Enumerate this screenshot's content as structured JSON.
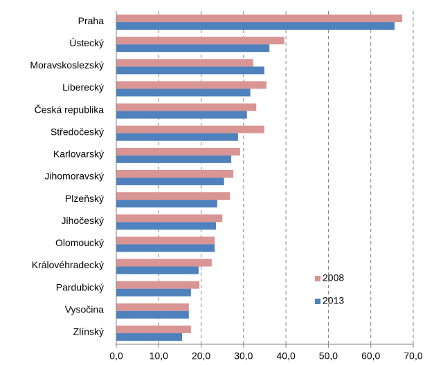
{
  "chart_data": {
    "type": "hbar",
    "categories": [
      "Praha",
      "Ústecký",
      "Moravskoslezský",
      "Liberecký",
      "Česká republika",
      "Středočeský",
      "Karlovarský",
      "Jihomoravský",
      "Plzeňský",
      "Jihočeský",
      "Olomoucký",
      "Královéhradecký",
      "Pardubický",
      "Vysočina",
      "Zlínský"
    ],
    "series": [
      {
        "name": "2008",
        "color": "#d99594",
        "values": [
          67.4,
          39.6,
          32.3,
          35.4,
          33.0,
          34.9,
          29.2,
          27.6,
          26.8,
          25.0,
          23.2,
          22.5,
          19.6,
          17.1,
          17.6
        ]
      },
      {
        "name": "2013",
        "color": "#4f81bd",
        "values": [
          65.6,
          36.1,
          34.9,
          31.6,
          30.8,
          28.7,
          27.1,
          25.4,
          23.8,
          23.5,
          23.2,
          19.4,
          17.6,
          17.1,
          15.5
        ]
      }
    ],
    "xlim": [
      0,
      70
    ],
    "xticks": [
      {
        "value": 0,
        "label": "0,0"
      },
      {
        "value": 10,
        "label": "10,0"
      },
      {
        "value": 20,
        "label": "20,0"
      },
      {
        "value": 30,
        "label": "30,0"
      },
      {
        "value": 40,
        "label": "40,0"
      },
      {
        "value": 50,
        "label": "50,0"
      },
      {
        "value": 60,
        "label": "60,0"
      },
      {
        "value": 70,
        "label": "70,0"
      }
    ],
    "grid": true
  }
}
